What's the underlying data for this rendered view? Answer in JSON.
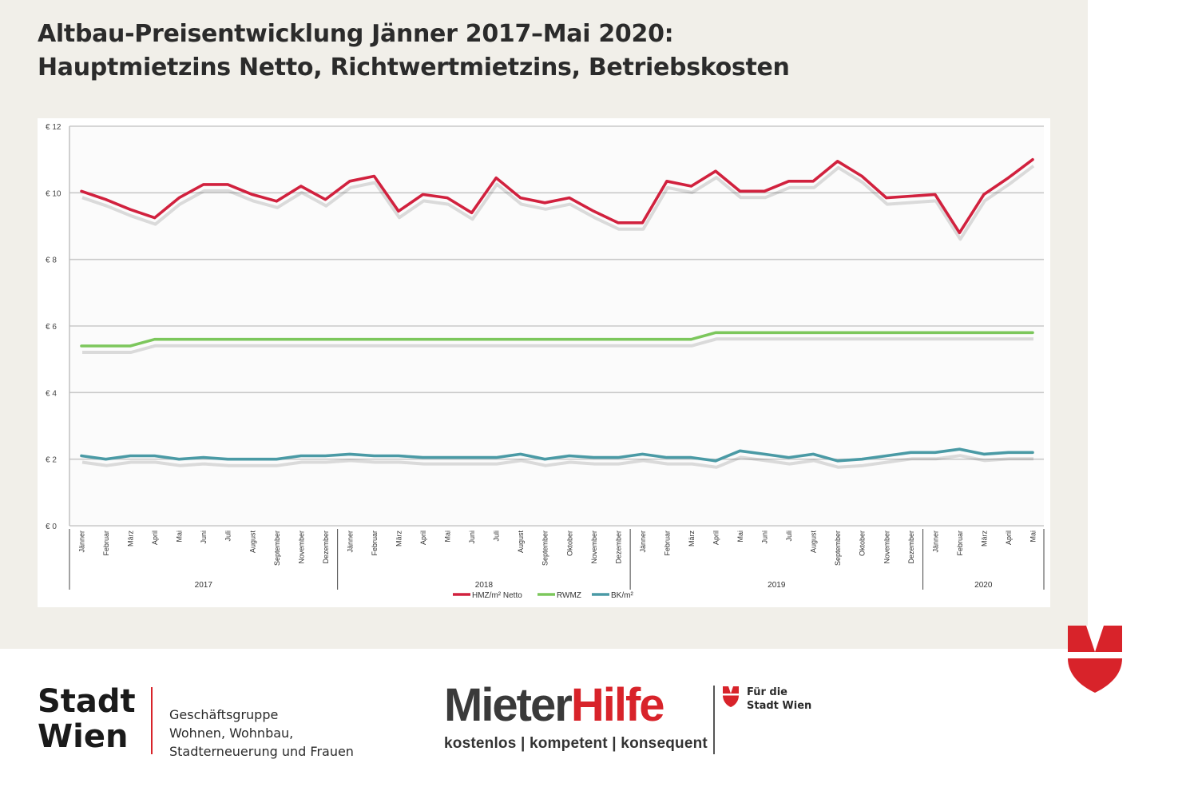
{
  "header": {
    "title_line1": "Altbau-Preisentwicklung Jänner 2017–Mai 2020:",
    "title_line2": "Hauptmietzins Netto, Richtwertmietzins, Betriebskosten"
  },
  "chart_data": {
    "type": "line",
    "categories": [
      "Jänner",
      "Februar",
      "März",
      "April",
      "Mai",
      "Juni",
      "Juli",
      "August",
      "September",
      "November",
      "Dezember",
      "Jänner",
      "Februar",
      "März",
      "April",
      "Mai",
      "Juni",
      "Juli",
      "August",
      "September",
      "Oktober",
      "November",
      "Dezember",
      "Jänner",
      "Februar",
      "März",
      "April",
      "Mai",
      "Juni",
      "Juli",
      "August",
      "September",
      "Oktober",
      "November",
      "Dezember",
      "Jänner",
      "Februar",
      "März",
      "April",
      "Mai"
    ],
    "year_groups": [
      {
        "label": "2017",
        "start": 0,
        "end": 10
      },
      {
        "label": "2018",
        "start": 11,
        "end": 22
      },
      {
        "label": "2019",
        "start": 23,
        "end": 34
      },
      {
        "label": "2020",
        "start": 35,
        "end": 39
      }
    ],
    "series": [
      {
        "name": "HMZ/m² Netto",
        "color": "#d1213e",
        "values": [
          10.05,
          9.8,
          9.5,
          9.25,
          9.85,
          10.25,
          10.25,
          9.95,
          9.75,
          10.2,
          9.8,
          10.35,
          10.5,
          9.45,
          9.95,
          9.85,
          9.4,
          10.45,
          9.85,
          9.7,
          9.85,
          9.45,
          9.1,
          9.1,
          10.35,
          10.2,
          10.65,
          10.05,
          10.05,
          10.35,
          10.35,
          10.95,
          10.5,
          9.85,
          9.9,
          9.95,
          8.8,
          9.95,
          10.45,
          11.0
        ]
      },
      {
        "name": "RWMZ",
        "color": "#7cc75c",
        "values": [
          5.4,
          5.4,
          5.4,
          5.6,
          5.6,
          5.6,
          5.6,
          5.6,
          5.6,
          5.6,
          5.6,
          5.6,
          5.6,
          5.6,
          5.6,
          5.6,
          5.6,
          5.6,
          5.6,
          5.6,
          5.6,
          5.6,
          5.6,
          5.6,
          5.6,
          5.6,
          5.8,
          5.8,
          5.8,
          5.8,
          5.8,
          5.8,
          5.8,
          5.8,
          5.8,
          5.8,
          5.8,
          5.8,
          5.8,
          5.8
        ]
      },
      {
        "name": "BK/m²",
        "color": "#4a9aa5",
        "values": [
          2.1,
          2.0,
          2.1,
          2.1,
          2.0,
          2.05,
          2.0,
          2.0,
          2.0,
          2.1,
          2.1,
          2.15,
          2.1,
          2.1,
          2.05,
          2.05,
          2.05,
          2.05,
          2.15,
          2.0,
          2.1,
          2.05,
          2.05,
          2.15,
          2.05,
          2.05,
          1.95,
          2.25,
          2.15,
          2.05,
          2.15,
          1.95,
          2.0,
          2.1,
          2.2,
          2.2,
          2.3,
          2.15,
          2.2,
          2.2
        ]
      }
    ],
    "yticks": [
      "€ 0",
      "€ 2",
      "€ 4",
      "€ 6",
      "€ 8",
      "€ 10",
      "€ 12"
    ],
    "ylim": [
      0,
      12
    ],
    "grid": true,
    "legend_position": "bottom-center"
  },
  "footer": {
    "stadt_line1": "Stadt",
    "stadt_line2": "Wien",
    "geschaeft_line1": "Geschäftsgruppe",
    "geschaeft_line2": "Wohnen, Wohnbau,",
    "geschaeft_line3": "Stadterneuerung und Frauen",
    "mieter": "Mieter",
    "hilfe": "Hilfe",
    "tagline": "kostenlos | kompetent | konsequent",
    "fuer_line1": "Für die",
    "fuer_line2": "Stadt Wien"
  },
  "colors": {
    "accent_red": "#d8232a",
    "background": "#f1efe9"
  }
}
